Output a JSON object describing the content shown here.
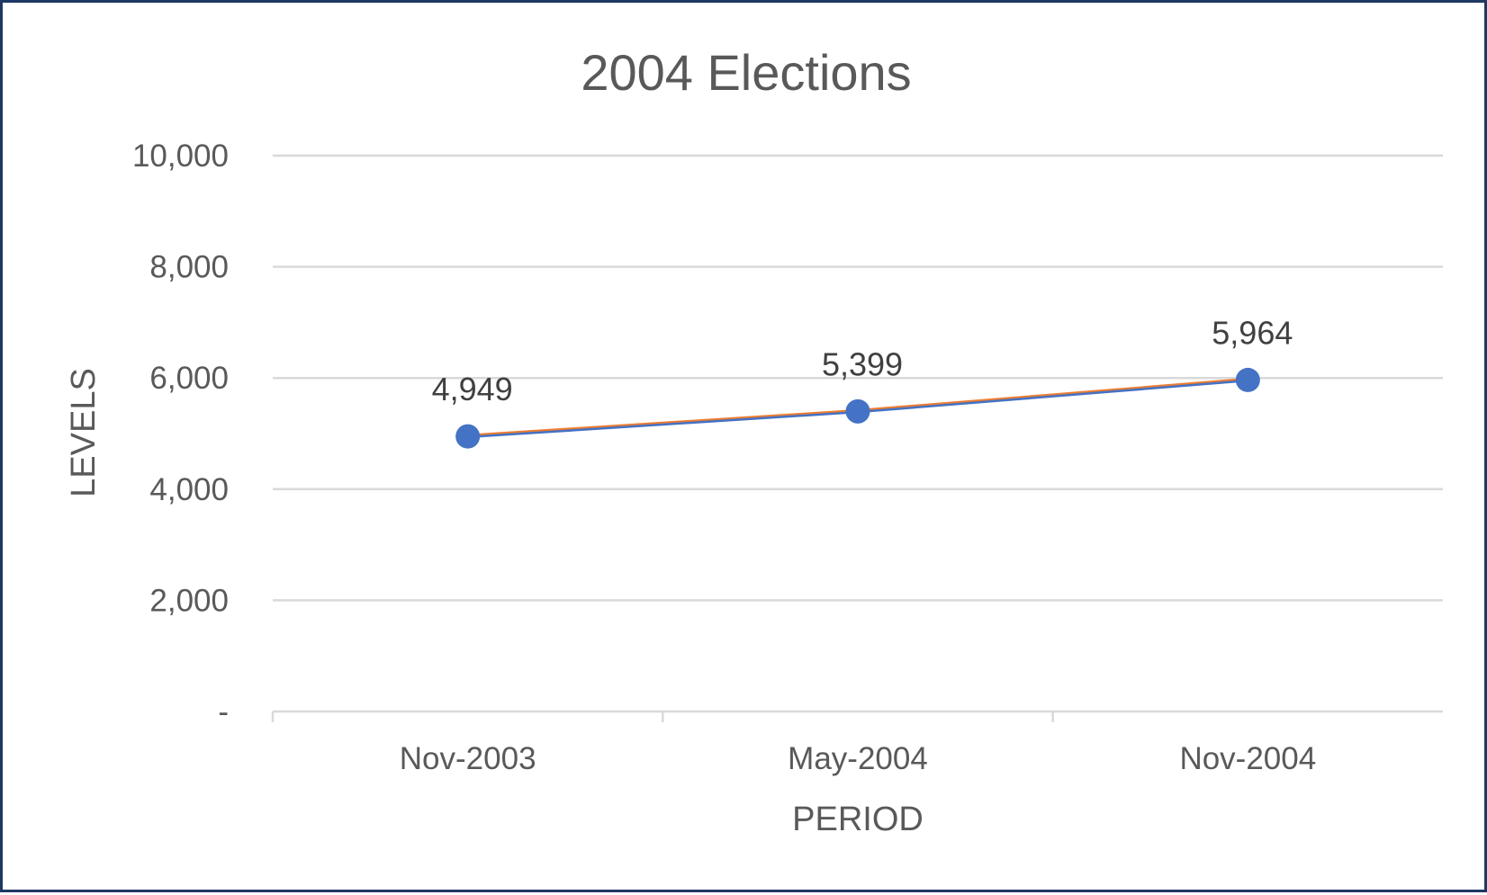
{
  "chart_data": {
    "type": "line",
    "title": "2004 Elections",
    "xlabel": "PERIOD",
    "ylabel": "LEVELS",
    "categories": [
      "Nov-2003",
      "May-2004",
      "Nov-2004"
    ],
    "series": [
      {
        "values": [
          4949,
          5399,
          5964
        ],
        "data_labels": [
          "4,949",
          "5,399",
          "5,964"
        ],
        "color": "#4472c4",
        "overlay_color": "#ed7d31"
      }
    ],
    "ylim": [
      0,
      10000
    ],
    "yticks": [
      0,
      2000,
      4000,
      6000,
      8000,
      10000
    ],
    "ytick_labels": [
      "-",
      "2,000",
      "4,000",
      "6,000",
      "8,000",
      "10,000"
    ],
    "grid": true,
    "legend": "none"
  },
  "colors": {
    "border": "#1f3864",
    "gridline": "#d9d9d9",
    "text": "#595959"
  }
}
